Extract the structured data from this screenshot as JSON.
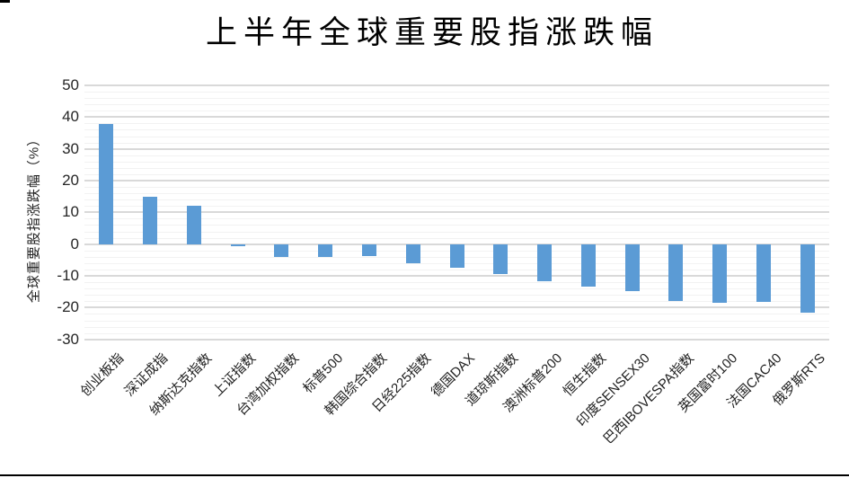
{
  "page": {
    "background": "#FFFFFF"
  },
  "chart_data": {
    "type": "bar",
    "title": "上半年全球重要股指涨跌幅",
    "ylabel": "全球重要股指涨跌幅（%）",
    "xlabel": "",
    "categories": [
      "创业板指",
      "深证成指",
      "纳斯达克指数",
      "上证指数",
      "台湾加权指数",
      "标普500",
      "韩国综合指数",
      "日经225指数",
      "德国DAX",
      "道琼斯指数",
      "澳洲标普200",
      "恒生指数",
      "印度SENSEX30",
      "巴西IBOVESPA指数",
      "英国富时100",
      "法国CAC40",
      "俄罗斯RTS"
    ],
    "values": [
      37.7,
      14.9,
      12.1,
      -0.7,
      -4.1,
      -4.1,
      -3.9,
      -6.0,
      -7.4,
      -9.5,
      -11.8,
      -13.3,
      -14.9,
      -17.8,
      -18.4,
      -18.3,
      -21.7
    ],
    "ylim": [
      -30,
      50
    ],
    "yticks": [
      50,
      40,
      30,
      20,
      10,
      0,
      -10,
      -20,
      -30
    ],
    "major_unit": 10,
    "minor_unit": 2,
    "grid": "horizontal major + minor",
    "legend": "none",
    "bar_color": "#5B9BD5",
    "major_grid_color": "#D9D9D9",
    "minor_grid_color": "#F2F2F2",
    "tick_text_color": "#262626",
    "title_color": "#000000"
  },
  "decorations": {
    "top_left_mark_color": "#000000",
    "bottom_rule_color": "#000000"
  }
}
